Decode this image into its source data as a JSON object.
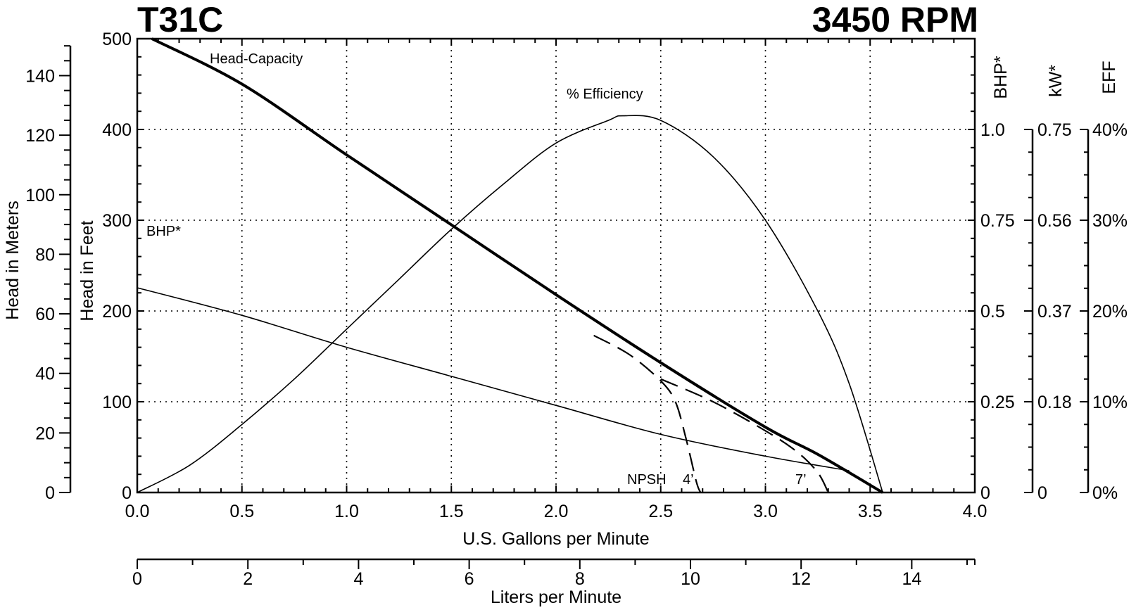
{
  "chart_data": {
    "type": "line",
    "title_left": "T31C",
    "title_right": "3450 RPM",
    "x_axis": {
      "label": "U.S. Gallons per Minute",
      "range": [
        0,
        4.0
      ],
      "ticks": [
        "0.0",
        "0.5",
        "1.0",
        "1.5",
        "2.0",
        "2.5",
        "3.0",
        "3.5",
        "4.0"
      ]
    },
    "x_axis_secondary": {
      "label": "Liters per Minute",
      "range": [
        0,
        15.14
      ],
      "ticks": [
        "0",
        "2",
        "4",
        "6",
        "8",
        "10",
        "12",
        "14"
      ]
    },
    "y_axis_feet": {
      "label": "Head in Feet",
      "range": [
        0,
        500
      ],
      "ticks": [
        "0",
        "100",
        "200",
        "300",
        "400",
        "500"
      ]
    },
    "y_axis_meters": {
      "label": "Head in Meters",
      "range": [
        0,
        152.4
      ],
      "ticks": [
        "0",
        "20",
        "40",
        "60",
        "80",
        "100",
        "120",
        "140"
      ]
    },
    "y_axis_bhp": {
      "label": "BHP*",
      "ticks": [
        "0",
        "0.25",
        "0.5",
        "0.75",
        "1.0"
      ]
    },
    "y_axis_kw": {
      "label": "kW*",
      "ticks": [
        "0",
        "0.18",
        "0.37",
        "0.56",
        "0.75"
      ]
    },
    "y_axis_eff": {
      "label": "EFF",
      "ticks": [
        "0%",
        "10%",
        "20%",
        "30%",
        "40%"
      ]
    },
    "grid": true,
    "series": [
      {
        "name": "Head-Capacity",
        "unit": "ft",
        "points": [
          [
            0.07,
            500
          ],
          [
            0.5,
            450
          ],
          [
            1.0,
            372
          ],
          [
            1.5,
            295
          ],
          [
            2.0,
            218
          ],
          [
            2.5,
            143
          ],
          [
            3.0,
            72
          ],
          [
            3.25,
            42
          ],
          [
            3.56,
            0
          ]
        ]
      },
      {
        "name": "% Efficiency",
        "unit": "percent",
        "points": [
          [
            0.0,
            0
          ],
          [
            0.25,
            3
          ],
          [
            0.5,
            7.5
          ],
          [
            0.75,
            12.5
          ],
          [
            1.0,
            18
          ],
          [
            1.25,
            23.5
          ],
          [
            1.5,
            29
          ],
          [
            1.75,
            34
          ],
          [
            2.0,
            38.5
          ],
          [
            2.25,
            41
          ],
          [
            2.32,
            41.5
          ],
          [
            2.5,
            41
          ],
          [
            2.75,
            37
          ],
          [
            3.0,
            30
          ],
          [
            3.25,
            20
          ],
          [
            3.4,
            12
          ],
          [
            3.56,
            0
          ]
        ]
      },
      {
        "name": "BHP*",
        "unit": "hp",
        "points": [
          [
            0.0,
            0.564
          ],
          [
            0.5,
            0.488
          ],
          [
            1.0,
            0.4
          ],
          [
            1.5,
            0.32
          ],
          [
            2.0,
            0.24
          ],
          [
            2.5,
            0.16
          ],
          [
            3.0,
            0.1
          ],
          [
            3.4,
            0.06
          ]
        ]
      },
      {
        "name": "NPSH 4'",
        "unit": "ft",
        "points": [
          [
            2.18,
            173
          ],
          [
            2.35,
            152
          ],
          [
            2.5,
            123
          ],
          [
            2.57,
            100
          ],
          [
            2.62,
            60
          ],
          [
            2.67,
            12
          ],
          [
            2.69,
            0
          ]
        ]
      },
      {
        "name": "7'",
        "unit": "ft",
        "points": [
          [
            2.5,
            125
          ],
          [
            2.75,
            100
          ],
          [
            3.0,
            68
          ],
          [
            3.15,
            45
          ],
          [
            3.25,
            22
          ],
          [
            3.3,
            0
          ]
        ]
      }
    ],
    "annotations": [
      {
        "text": "Head-Capacity"
      },
      {
        "text": "% Efficiency"
      },
      {
        "text": "BHP*"
      },
      {
        "text": "NPSH"
      },
      {
        "text": "4’"
      },
      {
        "text": "7’"
      }
    ]
  }
}
